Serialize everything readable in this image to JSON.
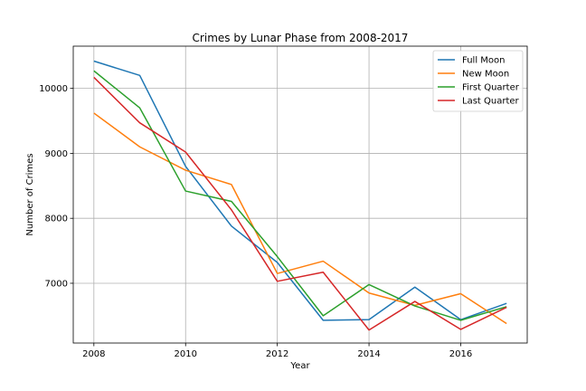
{
  "chart_data": {
    "type": "line",
    "title": "Crimes by Lunar Phase from 2008-2017",
    "xlabel": "Year",
    "ylabel": "Number of Crimes",
    "x": [
      2008,
      2009,
      2010,
      2011,
      2012,
      2013,
      2014,
      2015,
      2016,
      2017
    ],
    "xlim": [
      2007.55,
      2017.45
    ],
    "ylim": [
      6080,
      10650
    ],
    "xticks": [
      2008,
      2010,
      2012,
      2014,
      2016
    ],
    "yticks": [
      7000,
      8000,
      9000,
      10000
    ],
    "grid": true,
    "legend_position": "top-right",
    "series": [
      {
        "name": "Full Moon",
        "color": "#1f77b4",
        "values": [
          10420,
          10200,
          8800,
          7880,
          7320,
          6430,
          6440,
          6940,
          6440,
          6690
        ]
      },
      {
        "name": "New Moon",
        "color": "#ff7f0e",
        "values": [
          9620,
          9100,
          8740,
          8520,
          7150,
          7340,
          6850,
          6660,
          6840,
          6380
        ]
      },
      {
        "name": "First Quarter",
        "color": "#2ca02c",
        "values": [
          10270,
          9700,
          8420,
          8260,
          7410,
          6500,
          6980,
          6650,
          6430,
          6640
        ]
      },
      {
        "name": "Last Quarter",
        "color": "#d62728",
        "values": [
          10170,
          9470,
          9020,
          8130,
          7030,
          7170,
          6280,
          6720,
          6290,
          6630
        ]
      }
    ]
  }
}
